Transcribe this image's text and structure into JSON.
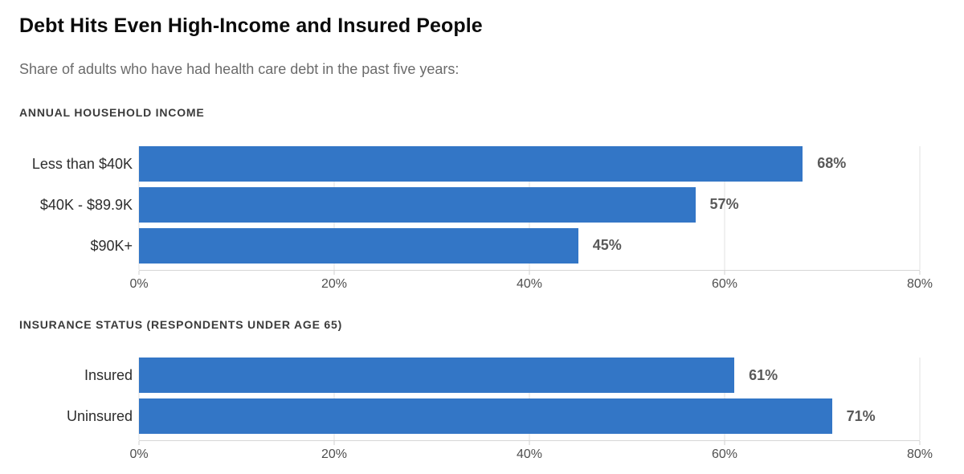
{
  "header": {
    "title": "Debt Hits Even High-Income and Insured People",
    "subtitle": "Share of adults who have had health care debt in the past five years:"
  },
  "colors": {
    "bar": "#3376c6",
    "value_label": "#595959",
    "gridline": "#e2e2e2",
    "axis_line": "#d6d6d6"
  },
  "chart_data": [
    {
      "type": "bar",
      "orientation": "horizontal",
      "section_title": "ANNUAL HOUSEHOLD INCOME",
      "categories": [
        "Less than $40K",
        "$40K - $89.9K",
        "$90K+"
      ],
      "values": [
        68,
        57,
        45
      ],
      "value_labels": [
        "68%",
        "57%",
        "45%"
      ],
      "xlim": [
        0,
        80
      ],
      "tick_values": [
        0,
        20,
        40,
        60,
        80
      ],
      "tick_labels": [
        "0%",
        "20%",
        "40%",
        "60%",
        "80%"
      ],
      "grid": true,
      "legend": false
    },
    {
      "type": "bar",
      "orientation": "horizontal",
      "section_title": "INSURANCE STATUS (RESPONDENTS UNDER AGE 65)",
      "categories": [
        "Insured",
        "Uninsured"
      ],
      "values": [
        61,
        71
      ],
      "value_labels": [
        "61%",
        "71%"
      ],
      "xlim": [
        0,
        80
      ],
      "tick_values": [
        0,
        20,
        40,
        60,
        80
      ],
      "tick_labels": [
        "0%",
        "20%",
        "40%",
        "60%",
        "80%"
      ],
      "grid": true,
      "legend": false
    }
  ]
}
